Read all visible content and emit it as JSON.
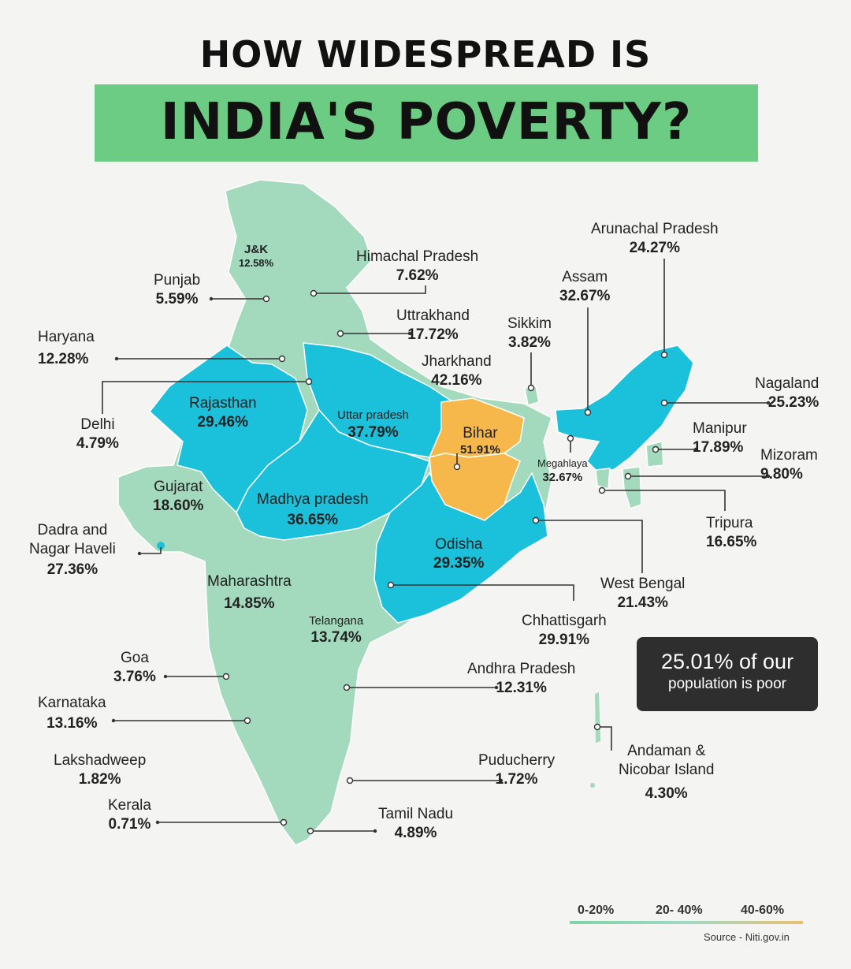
{
  "title": {
    "line1": "HOW WIDESPREAD IS",
    "line2": "INDIA'S POVERTY?"
  },
  "colors": {
    "low": "#a3d9bc",
    "mid": "#1bc0da",
    "high": "#f7b84b",
    "title_band": "#6ccc84",
    "background": "#f4f4f2"
  },
  "states": {
    "jk": {
      "name": "J&K",
      "value": "12.58%"
    },
    "himachal": {
      "name": "Himachal Pradesh",
      "value": "7.62%"
    },
    "punjab": {
      "name": "Punjab",
      "value": "5.59%"
    },
    "uttrakhand": {
      "name": "Uttrakhand",
      "value": "17.72%"
    },
    "haryana": {
      "name": "Haryana",
      "value": "12.28%"
    },
    "delhi": {
      "name": "Delhi",
      "value": "4.79%"
    },
    "rajasthan": {
      "name": "Rajasthan",
      "value": "29.46%"
    },
    "up": {
      "name": "Uttar pradesh",
      "value": "37.79%"
    },
    "bihar": {
      "name": "Bihar",
      "value": "51.91%"
    },
    "jharkhand": {
      "name": "Jharkhand",
      "value": "42.16%"
    },
    "sikkim": {
      "name": "Sikkim",
      "value": "3.82%"
    },
    "assam": {
      "name": "Assam",
      "value": "32.67%"
    },
    "arunachal": {
      "name": "Arunachal Pradesh",
      "value": "24.27%"
    },
    "nagaland": {
      "name": "Nagaland",
      "value": "25.23%"
    },
    "manipur": {
      "name": "Manipur",
      "value": "17.89%"
    },
    "mizoram": {
      "name": "Mizoram",
      "value": "9.80%"
    },
    "megahlaya": {
      "name": "Megahlaya",
      "value": "32.67%"
    },
    "tripura": {
      "name": "Tripura",
      "value": "16.65%"
    },
    "gujarat": {
      "name": "Gujarat",
      "value": "18.60%"
    },
    "mp": {
      "name": "Madhya pradesh",
      "value": "36.65%"
    },
    "dadra": {
      "name1": "Dadra and",
      "name2": "Nagar Haveli",
      "value": "27.36%"
    },
    "odisha": {
      "name": "Odisha",
      "value": "29.35%"
    },
    "westbengal": {
      "name": "West Bengal",
      "value": "21.43%"
    },
    "maharashtra": {
      "name": "Maharashtra",
      "value": "14.85%"
    },
    "chhattisgarh": {
      "name": "Chhattisgarh",
      "value": "29.91%"
    },
    "telangana": {
      "name": "Telangana",
      "value": "13.74%"
    },
    "goa": {
      "name": "Goa",
      "value": "3.76%"
    },
    "andhra": {
      "name": "Andhra Pradesh",
      "value": "12.31%"
    },
    "karnataka": {
      "name": "Karnataka",
      "value": "13.16%"
    },
    "andaman": {
      "name1": "Andaman &",
      "name2": "Nicobar Island",
      "value": "4.30%"
    },
    "lakshadweep": {
      "name": "Lakshadweep",
      "value": "1.82%"
    },
    "puducherry": {
      "name": "Puducherry",
      "value": "1.72%"
    },
    "kerala": {
      "name": "Kerala",
      "value": "0.71%"
    },
    "tamilnadu": {
      "name": "Tamil Nadu",
      "value": "4.89%"
    }
  },
  "callout": {
    "line1": "25.01% of our",
    "line2": "population is poor"
  },
  "legend": {
    "low": "0-20%",
    "mid": "20- 40%",
    "high": "40-60%"
  },
  "source": "Source - Niti.gov.in"
}
